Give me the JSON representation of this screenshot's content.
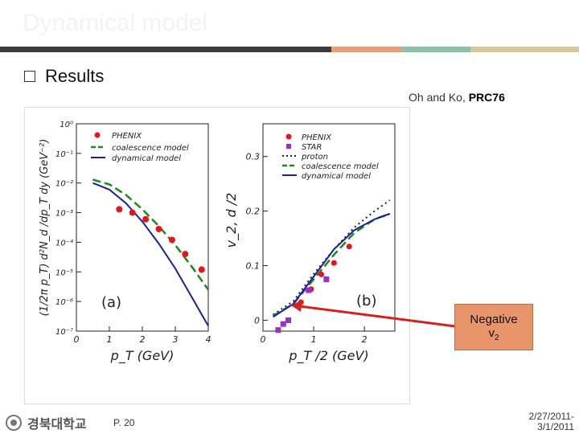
{
  "slide": {
    "title": "Dynamical model",
    "bullet": "Results",
    "reference_prefix": "Oh and Ko, ",
    "reference_journal": "PRC76",
    "callout_line1": "Negative",
    "callout_line2": "v",
    "callout_sub": "2",
    "logo_text": "경북대학교",
    "page": "P. 20",
    "date_line1": "2/27/2011-",
    "date_line2": "3/1/2011"
  },
  "colors": {
    "bar1": "#3b3b3b",
    "bar2": "#e3a07a",
    "bar3": "#8fbfa8",
    "bar4": "#d7c79c",
    "phenix": "#e8141b",
    "star": "#9b2fc7",
    "coalescence": "#1a8a1a",
    "dynamical": "#1b1f9e",
    "callout": "#e9956b"
  },
  "chart_data": [
    {
      "type": "scatter",
      "panel_label": "(a)",
      "xlabel": "p_T (GeV)",
      "ylabel": "(1/2π p_T) d²N_d /dp_T dy (GeV⁻²)",
      "log_y": true,
      "xlim": [
        0,
        4
      ],
      "ylim_exponent": [
        -7,
        0
      ],
      "x_ticks": [
        "0",
        "1",
        "2",
        "3",
        "4"
      ],
      "y_ticks": [
        "10⁰",
        "10⁻¹",
        "10⁻²",
        "10⁻³",
        "10⁻⁴",
        "10⁻⁵",
        "10⁻⁶",
        "10⁻⁷"
      ],
      "legend": [
        "PHENIX",
        "coalescence model",
        "dynamical model"
      ],
      "series": [
        {
          "name": "PHENIX",
          "x": [
            1.3,
            1.7,
            2.1,
            2.5,
            2.9,
            3.3,
            3.8
          ],
          "y": [
            0.0013,
            0.001,
            0.0006,
            0.00028,
            0.00012,
            4e-05,
            1.2e-05
          ]
        },
        {
          "name": "coalescence model",
          "x": [
            0.5,
            1.0,
            1.5,
            2.0,
            2.5,
            3.0,
            3.5,
            4.0
          ],
          "y": [
            0.013,
            0.009,
            0.004,
            0.0013,
            0.00035,
            8e-05,
            1.5e-05,
            2.5e-06
          ]
        },
        {
          "name": "dynamical model",
          "x": [
            0.5,
            1.0,
            1.5,
            2.0,
            2.5,
            3.0,
            3.5,
            4.0
          ],
          "y": [
            0.01,
            0.006,
            0.0021,
            0.0005,
            9e-05,
            1.3e-05,
            1.4e-06,
            1.5e-07
          ]
        }
      ]
    },
    {
      "type": "scatter",
      "panel_label": "(b)",
      "xlabel": "p_T /2 (GeV)",
      "ylabel": "v_2, d /2",
      "xlim": [
        0,
        2.6
      ],
      "ylim": [
        -0.02,
        0.36
      ],
      "x_ticks": [
        "0",
        "1",
        "2"
      ],
      "y_ticks": [
        "0",
        "0.1",
        "0.2",
        "0.3"
      ],
      "legend": [
        "PHENIX",
        "STAR",
        "proton",
        "coalescence model",
        "dynamical model"
      ],
      "series": [
        {
          "name": "PHENIX",
          "x": [
            0.75,
            0.95,
            1.15,
            1.4,
            1.7
          ],
          "y": [
            0.033,
            0.057,
            0.084,
            0.105,
            0.135
          ]
        },
        {
          "name": "STAR",
          "x": [
            0.3,
            0.4,
            0.5,
            0.9,
            1.25
          ],
          "y": [
            -0.018,
            -0.007,
            0.0,
            0.055,
            0.075
          ]
        },
        {
          "name": "proton",
          "x": [
            0.2,
            0.6,
            1.0,
            1.4,
            1.8,
            2.2,
            2.5
          ],
          "y": [
            0.01,
            0.035,
            0.085,
            0.13,
            0.17,
            0.2,
            0.22
          ]
        },
        {
          "name": "coalescence model",
          "x": [
            0.2,
            0.6,
            1.0,
            1.4,
            1.8,
            2.2,
            2.5
          ],
          "y": [
            0.008,
            0.03,
            0.075,
            0.12,
            0.16,
            0.185,
            0.195
          ]
        },
        {
          "name": "dynamical model",
          "x": [
            0.2,
            0.6,
            1.0,
            1.4,
            1.8,
            2.2,
            2.5
          ],
          "y": [
            0.006,
            0.03,
            0.08,
            0.13,
            0.165,
            0.185,
            0.195
          ]
        }
      ]
    }
  ]
}
